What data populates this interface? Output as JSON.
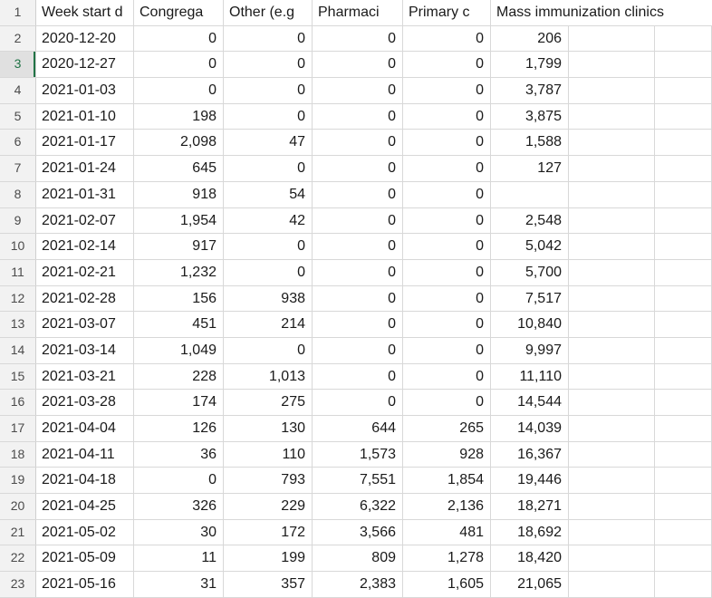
{
  "grid": {
    "header_row_number": "1",
    "column_headers": [
      "Week start d",
      "Congrega",
      "Other (e.g",
      "Pharmaci",
      "Primary c",
      "Mass immunization clinics"
    ],
    "selected_row_number": "3",
    "rows": [
      {
        "n": "2",
        "cells": [
          "2020-12-20",
          "0",
          "0",
          "0",
          "0",
          "206"
        ]
      },
      {
        "n": "3",
        "cells": [
          "2020-12-27",
          "0",
          "0",
          "0",
          "0",
          "1,799"
        ]
      },
      {
        "n": "4",
        "cells": [
          "2021-01-03",
          "0",
          "0",
          "0",
          "0",
          "3,787"
        ]
      },
      {
        "n": "5",
        "cells": [
          "2021-01-10",
          "198",
          "0",
          "0",
          "0",
          "3,875"
        ]
      },
      {
        "n": "6",
        "cells": [
          "2021-01-17",
          "2,098",
          "47",
          "0",
          "0",
          "1,588"
        ]
      },
      {
        "n": "7",
        "cells": [
          "2021-01-24",
          "645",
          "0",
          "0",
          "0",
          "127"
        ]
      },
      {
        "n": "8",
        "cells": [
          "2021-01-31",
          "918",
          "54",
          "0",
          "0",
          ""
        ]
      },
      {
        "n": "9",
        "cells": [
          "2021-02-07",
          "1,954",
          "42",
          "0",
          "0",
          "2,548"
        ]
      },
      {
        "n": "10",
        "cells": [
          "2021-02-14",
          "917",
          "0",
          "0",
          "0",
          "5,042"
        ]
      },
      {
        "n": "11",
        "cells": [
          "2021-02-21",
          "1,232",
          "0",
          "0",
          "0",
          "5,700"
        ]
      },
      {
        "n": "12",
        "cells": [
          "2021-02-28",
          "156",
          "938",
          "0",
          "0",
          "7,517"
        ]
      },
      {
        "n": "13",
        "cells": [
          "2021-03-07",
          "451",
          "214",
          "0",
          "0",
          "10,840"
        ]
      },
      {
        "n": "14",
        "cells": [
          "2021-03-14",
          "1,049",
          "0",
          "0",
          "0",
          "9,997"
        ]
      },
      {
        "n": "15",
        "cells": [
          "2021-03-21",
          "228",
          "1,013",
          "0",
          "0",
          "11,110"
        ]
      },
      {
        "n": "16",
        "cells": [
          "2021-03-28",
          "174",
          "275",
          "0",
          "0",
          "14,544"
        ]
      },
      {
        "n": "17",
        "cells": [
          "2021-04-04",
          "126",
          "130",
          "644",
          "265",
          "14,039"
        ]
      },
      {
        "n": "18",
        "cells": [
          "2021-04-11",
          "36",
          "110",
          "1,573",
          "928",
          "16,367"
        ]
      },
      {
        "n": "19",
        "cells": [
          "2021-04-18",
          "0",
          "793",
          "7,551",
          "1,854",
          "19,446"
        ]
      },
      {
        "n": "20",
        "cells": [
          "2021-04-25",
          "326",
          "229",
          "6,322",
          "2,136",
          "18,271"
        ]
      },
      {
        "n": "21",
        "cells": [
          "2021-05-02",
          "30",
          "172",
          "3,566",
          "481",
          "18,692"
        ]
      },
      {
        "n": "22",
        "cells": [
          "2021-05-09",
          "11",
          "199",
          "809",
          "1,278",
          "18,420"
        ]
      },
      {
        "n": "23",
        "cells": [
          "2021-05-16",
          "31",
          "357",
          "2,383",
          "1,605",
          "21,065"
        ]
      }
    ]
  },
  "colors": {
    "selection_green": "#217346",
    "gridline": "#d8d8d8",
    "row_header_bg": "#f2f2f2",
    "selected_row_header_bg": "#e0e0e0",
    "cell_text": "#1a1a1a",
    "row_header_text": "#4b4b4b",
    "background": "#ffffff"
  }
}
